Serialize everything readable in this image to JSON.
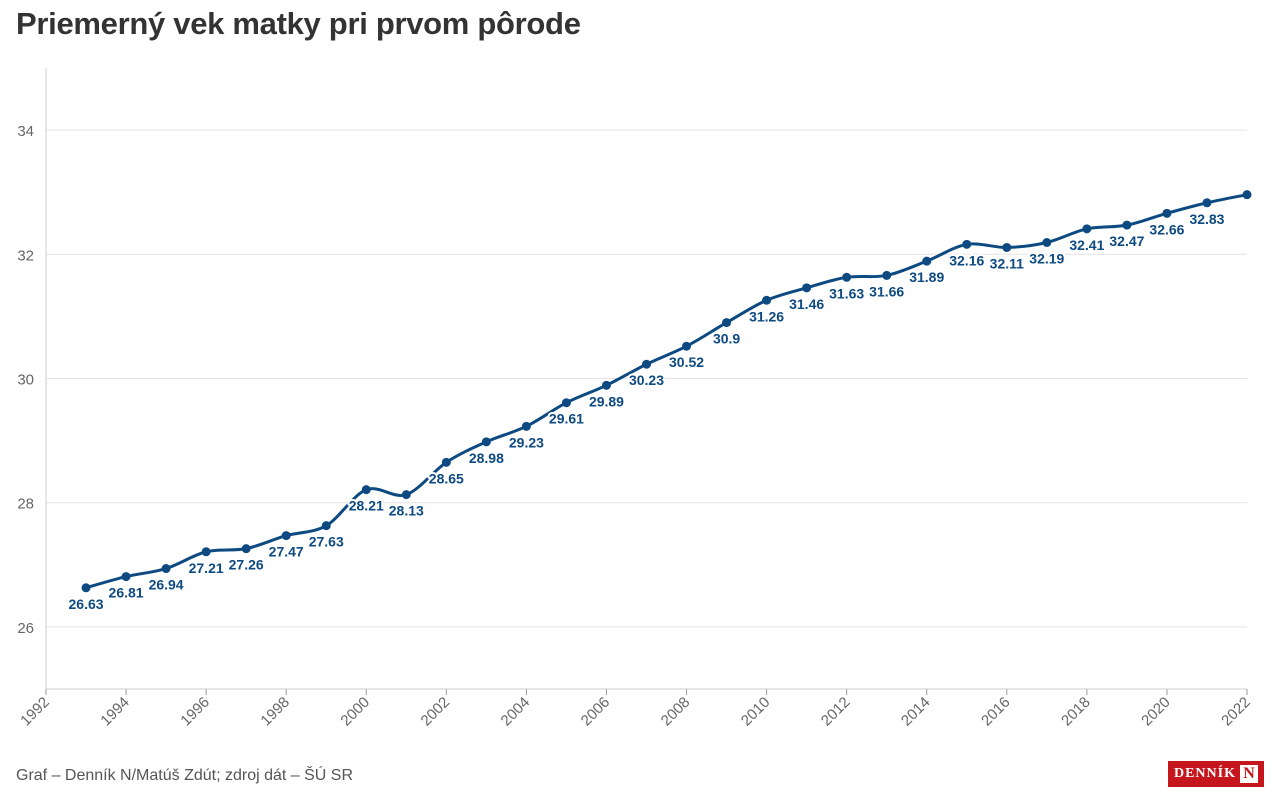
{
  "title": "Priemerný vek matky pri prvom pôrode",
  "footer": "Graf – Denník N/Matúš Zdút; zdroj dát – ŠÚ SR",
  "logo": {
    "text": "DENNÍK",
    "mark": "N"
  },
  "colors": {
    "line": "#0e4a82",
    "grid": "#e4e4e4",
    "axis_text": "#666666"
  },
  "chart_data": {
    "type": "line",
    "title": "Priemerný vek matky pri prvom pôrode",
    "xlabel": "",
    "ylabel": "",
    "xlim": [
      1992,
      2022
    ],
    "ylim": [
      25,
      35
    ],
    "x_ticks": [
      1992,
      1994,
      1996,
      1998,
      2000,
      2002,
      2004,
      2006,
      2008,
      2010,
      2012,
      2014,
      2016,
      2018,
      2020,
      2022
    ],
    "y_ticks": [
      26,
      28,
      30,
      32,
      34
    ],
    "grid": true,
    "series": [
      {
        "name": "Priemerný vek matky pri prvom pôrode",
        "x": [
          1993,
          1994,
          1995,
          1996,
          1997,
          1998,
          1999,
          2000,
          2001,
          2002,
          2003,
          2004,
          2005,
          2006,
          2007,
          2008,
          2009,
          2010,
          2011,
          2012,
          2013,
          2014,
          2015,
          2016,
          2017,
          2018,
          2019,
          2020,
          2021,
          2022
        ],
        "values": [
          26.63,
          26.81,
          26.94,
          27.21,
          27.26,
          27.47,
          27.63,
          28.21,
          28.13,
          28.65,
          28.98,
          29.23,
          29.61,
          29.89,
          30.23,
          30.52,
          30.9,
          31.26,
          31.46,
          31.63,
          31.66,
          31.89,
          32.16,
          32.11,
          32.19,
          32.41,
          32.47,
          32.66,
          32.83,
          32.96
        ],
        "labels": [
          "26.63",
          "26.81",
          "26.94",
          "27.21",
          "27.26",
          "27.47",
          "27.63",
          "28.21",
          "28.13",
          "28.65",
          "28.98",
          "29.23",
          "29.61",
          "29.89",
          "30.23",
          "30.52",
          "30.9",
          "31.26",
          "31.46",
          "31.63",
          "31.66",
          "31.89",
          "32.16",
          "32.11",
          "32.19",
          "32.41",
          "32.47",
          "32.66",
          "32.83",
          ""
        ]
      }
    ]
  }
}
